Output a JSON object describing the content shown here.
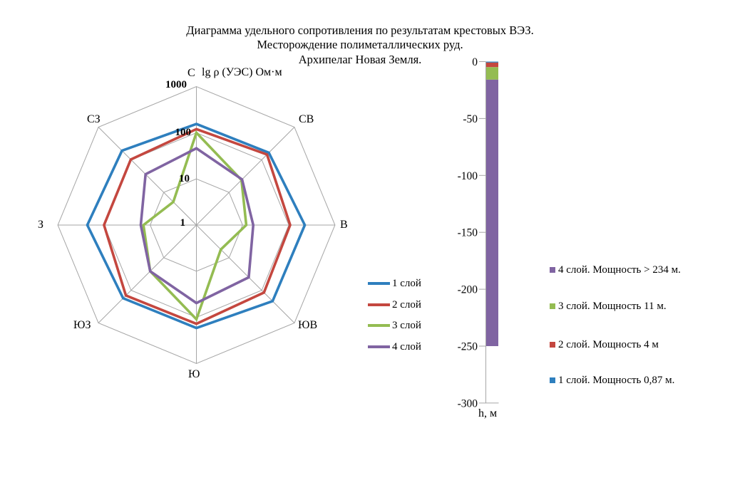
{
  "title": {
    "line1": "Диаграмма удельного сопротивления по результатам крестовых ВЭЗ.",
    "line2": "Месторождение полиметаллических руд.",
    "line3": "Архипелаг Новая Земля."
  },
  "chart_data": [
    {
      "type": "radar",
      "axis_title": "lg ρ (УЭС) Ом·м",
      "scale": "log10",
      "ring_values": [
        1,
        10,
        100,
        1000
      ],
      "ring_labels": [
        "1",
        "10",
        "100",
        "1000"
      ],
      "grid_color": "#A6A6A6",
      "directions": [
        "С",
        "СВ",
        "В",
        "ЮВ",
        "Ю",
        "ЮЗ",
        "З",
        "СЗ"
      ],
      "series": [
        {
          "name": "1 слой",
          "color": "#2E7FBE",
          "values": [
            155,
            165,
            222,
            215,
            170,
            175,
            230,
            190
          ]
        },
        {
          "name": "2 слой",
          "color": "#C4473F",
          "values": [
            120,
            145,
            107,
            117,
            138,
            144,
            100,
            102
          ]
        },
        {
          "name": "3 слой",
          "color": "#94BC52",
          "values": [
            100,
            24,
            12,
            5.6,
            110,
            26,
            14,
            5.1
          ]
        },
        {
          "name": "4 слой",
          "color": "#8064A2",
          "values": [
            46,
            25,
            17,
            40,
            49,
            26,
            16,
            36
          ]
        }
      ],
      "legend_position": "right"
    },
    {
      "type": "stacked-bar",
      "axis_label": "h, м",
      "ylim": [
        0,
        -300
      ],
      "yticks": [
        "0",
        "-50",
        "-100",
        "-150",
        "-200",
        "-250",
        "-300"
      ],
      "layers": [
        {
          "name": "1 слой",
          "color": "#2E7FBE",
          "from": 0,
          "to": 0.87
        },
        {
          "name": "2 слой",
          "color": "#C4473F",
          "from": 0.87,
          "to": 4.87
        },
        {
          "name": "3 слой",
          "color": "#94BC52",
          "from": 4.87,
          "to": 15.87
        },
        {
          "name": "4 слой",
          "color": "#8064A2",
          "from": 15.87,
          "to": 250
        }
      ],
      "legend": [
        "4 слой. Мощность > 234 м.",
        "3 слой. Мощность 11 м.",
        "2 слой. Мощность 4 м",
        "1 слой. Мощность 0,87 м."
      ],
      "legend_colors": [
        "#8064A2",
        "#94BC52",
        "#C4473F",
        "#2E7FBE"
      ]
    }
  ]
}
